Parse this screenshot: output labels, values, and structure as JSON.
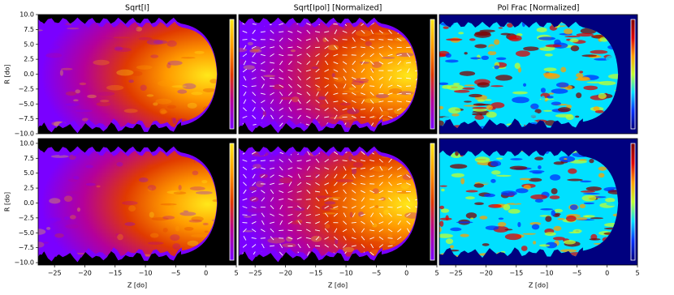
{
  "chart_data": [
    {
      "type": "image",
      "title": "Sqrt[I]",
      "ylabel": "R [do]",
      "xlim": [
        -27.7,
        5
      ],
      "ylim": [
        -10,
        10
      ],
      "yticks": [
        {
          "value": 10,
          "label": "10.0"
        },
        7.5,
        {
          "value": 5,
          "label": "5.0"
        },
        2.5,
        {
          "value": 0,
          "label": "0.0"
        },
        {
          "value": -2.5,
          "label": "−2.5"
        },
        {
          "value": -5,
          "label": "−5.0"
        },
        {
          "value": -7.5,
          "label": "−7.5"
        },
        {
          "value": -10,
          "label": "−10.0"
        }
      ],
      "background": "#000000",
      "colormap": [
        "#7a00ff",
        "#b4009a",
        "#e03a00",
        "#ff9a00",
        "#ffe81a"
      ]
    },
    {
      "type": "image",
      "title": "Sqrt[Ipol] [Normalized]",
      "xlim": [
        -27.7,
        5
      ],
      "ylim": [
        -10,
        10
      ],
      "background": "#000000",
      "colormap": [
        "#7a00ff",
        "#b4009a",
        "#e03a00",
        "#ff9a00",
        "#ffe81a"
      ],
      "vectors": true
    },
    {
      "type": "image",
      "title": "Pol Frac [Normalized]",
      "xlim": [
        -27.7,
        5
      ],
      "ylim": [
        -10,
        10
      ],
      "background": "#00007f",
      "colormap": [
        "#00007f",
        "#0030ff",
        "#00e0ff",
        "#c0ff30",
        "#ffa000",
        "#e00000",
        "#7f0000"
      ]
    },
    {
      "type": "image",
      "xlabel": "Z [do]",
      "ylabel": "R [do]",
      "xlim": [
        -27.7,
        5
      ],
      "ylim": [
        -10.4,
        10.8
      ],
      "xticks": [
        {
          "value": -25,
          "label": "−25"
        },
        {
          "value": -20,
          "label": "−20"
        },
        {
          "value": -15,
          "label": "−15"
        },
        {
          "value": -10,
          "label": "−10"
        },
        {
          "value": -5,
          "label": "−5"
        },
        0,
        5
      ],
      "yticks": [
        {
          "value": 10,
          "label": "10.0"
        },
        7.5,
        {
          "value": 5,
          "label": "5.0"
        },
        2.5,
        {
          "value": 0,
          "label": "0.0"
        },
        {
          "value": -2.5,
          "label": "−2.5"
        },
        {
          "value": -5,
          "label": "−5.0"
        },
        {
          "value": -7.5,
          "label": "−7.5"
        },
        {
          "value": -10,
          "label": "−10.0"
        }
      ],
      "background": "#000000",
      "colormap": [
        "#7a00ff",
        "#b4009a",
        "#e03a00",
        "#ff9a00",
        "#ffe81a"
      ]
    },
    {
      "type": "image",
      "xlabel": "Z [do]",
      "xlim": [
        -27.7,
        5
      ],
      "ylim": [
        -10.4,
        10.8
      ],
      "xticks": [
        {
          "value": -25,
          "label": "−25"
        },
        {
          "value": -20,
          "label": "−20"
        },
        {
          "value": -15,
          "label": "−15"
        },
        {
          "value": -10,
          "label": "−10"
        },
        {
          "value": -5,
          "label": "−5"
        },
        0,
        5
      ],
      "background": "#000000",
      "colormap": [
        "#7a00ff",
        "#b4009a",
        "#e03a00",
        "#ff9a00",
        "#ffe81a"
      ],
      "vectors": true
    },
    {
      "type": "image",
      "xlabel": "Z [do]",
      "xlim": [
        -27.7,
        5
      ],
      "ylim": [
        -10.4,
        10.8
      ],
      "xticks": [
        {
          "value": -25,
          "label": "−25"
        },
        {
          "value": -20,
          "label": "−20"
        },
        {
          "value": -15,
          "label": "−15"
        },
        {
          "value": -10,
          "label": "−10"
        },
        {
          "value": -5,
          "label": "−5"
        },
        0,
        5
      ],
      "background": "#00007f",
      "colormap": [
        "#00007f",
        "#0030ff",
        "#00e0ff",
        "#c0ff30",
        "#ffa000",
        "#e00000",
        "#7f0000"
      ]
    }
  ]
}
